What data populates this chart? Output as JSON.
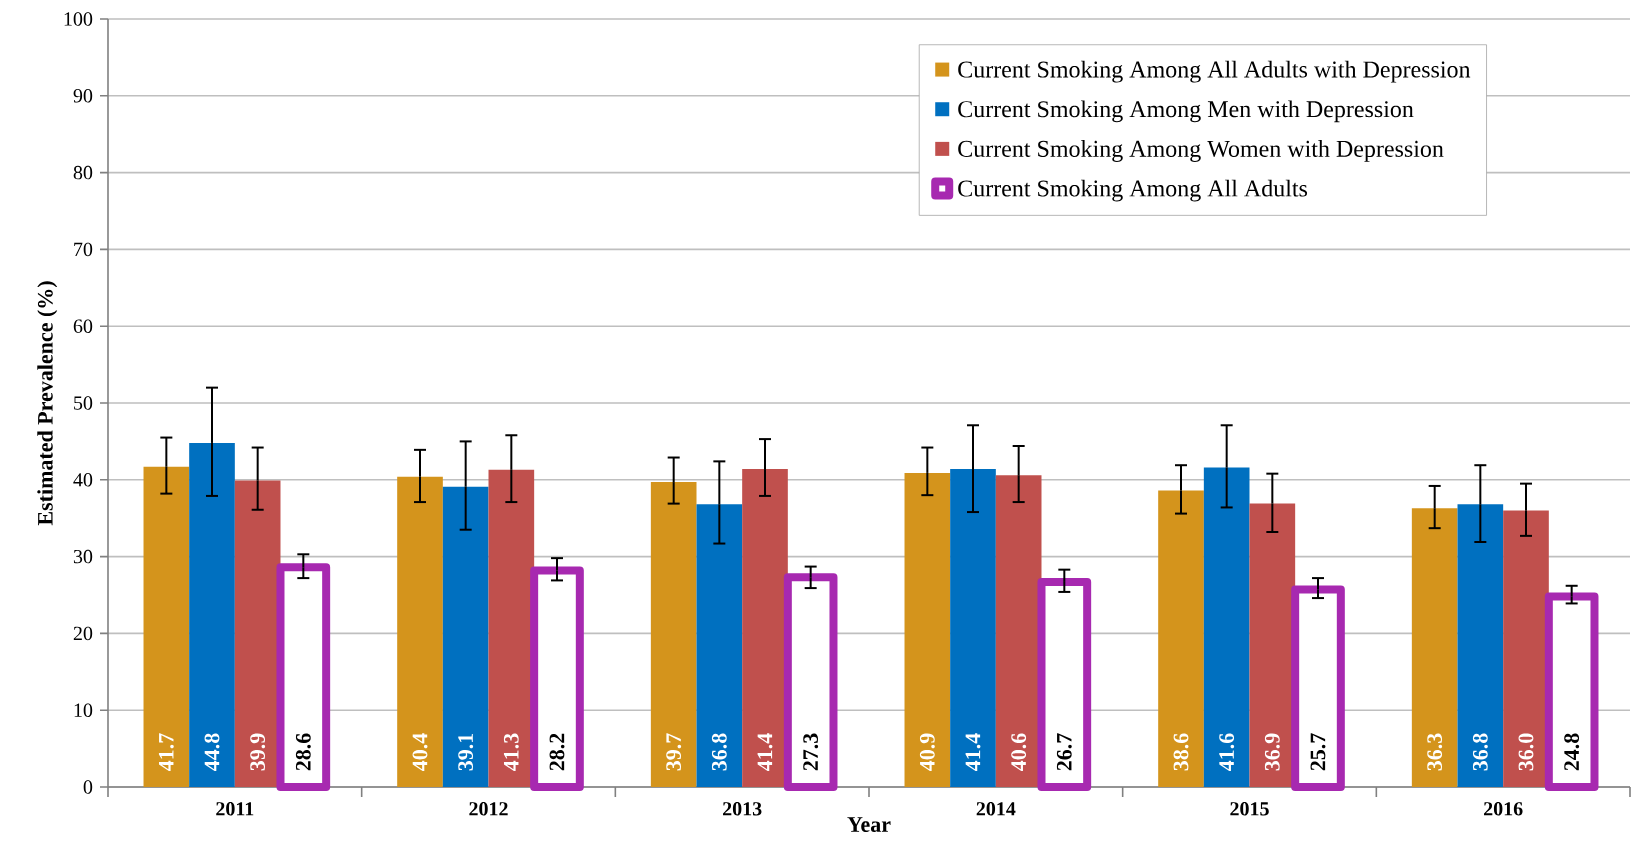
{
  "chart_data": {
    "type": "bar",
    "xlabel": "Year",
    "ylabel": "Estimated  Prevalence  (%)",
    "categories": [
      "2011",
      "2012",
      "2013",
      "2014",
      "2015",
      "2016"
    ],
    "series": [
      {
        "name": "Current Smoking Among All Adults with Depression",
        "color": "#d4941c",
        "values": [
          41.7,
          40.4,
          39.7,
          40.9,
          38.6,
          36.3
        ],
        "value_labels": [
          "41.7",
          "40.4",
          "39.7",
          "40.9",
          "38.6",
          "36.3"
        ],
        "errors": [
          [
            38.2,
            45.5
          ],
          [
            37.1,
            43.9
          ],
          [
            36.9,
            42.9
          ],
          [
            38.0,
            44.2
          ],
          [
            35.6,
            41.9
          ],
          [
            33.7,
            39.2
          ]
        ]
      },
      {
        "name": "Current Smoking Among Men with Depression",
        "color": "#0070c0",
        "values": [
          44.8,
          39.1,
          36.8,
          41.4,
          41.6,
          36.8
        ],
        "value_labels": [
          "44.8",
          "39.1",
          "36.8",
          "41.4",
          "41.6",
          "36.8"
        ],
        "errors": [
          [
            37.9,
            52.0
          ],
          [
            33.5,
            45.0
          ],
          [
            31.7,
            42.4
          ],
          [
            35.8,
            47.1
          ],
          [
            36.4,
            47.1
          ],
          [
            31.9,
            41.9
          ]
        ]
      },
      {
        "name": "Current Smoking Among Women with Depression",
        "color": "#c0504d",
        "values": [
          39.9,
          41.3,
          41.4,
          40.6,
          36.9,
          36.0
        ],
        "value_labels": [
          "39.9",
          "41.3",
          "41.4",
          "40.6",
          "36.9",
          "36.0"
        ],
        "errors": [
          [
            36.1,
            44.2
          ],
          [
            37.1,
            45.8
          ],
          [
            37.9,
            45.3
          ],
          [
            37.1,
            44.4
          ],
          [
            33.2,
            40.8
          ],
          [
            32.7,
            39.5
          ]
        ]
      },
      {
        "name": "Current Smoking Among All Adults",
        "color": "#a729b0",
        "values": [
          28.6,
          28.2,
          27.3,
          26.7,
          25.7,
          24.8
        ],
        "value_labels": [
          "28.6",
          "28.2",
          "27.3",
          "26.7",
          "25.7",
          "24.8"
        ],
        "errors": [
          [
            27.2,
            30.3
          ],
          [
            26.9,
            29.8
          ],
          [
            25.9,
            28.7
          ],
          [
            25.4,
            28.3
          ],
          [
            24.6,
            27.2
          ],
          [
            23.9,
            26.2
          ]
        ]
      }
    ],
    "ylim": [
      0,
      100
    ],
    "yticks": [
      0,
      10,
      20,
      30,
      40,
      50,
      60,
      70,
      80,
      90,
      100
    ],
    "grid": "y",
    "legend": "top right"
  }
}
